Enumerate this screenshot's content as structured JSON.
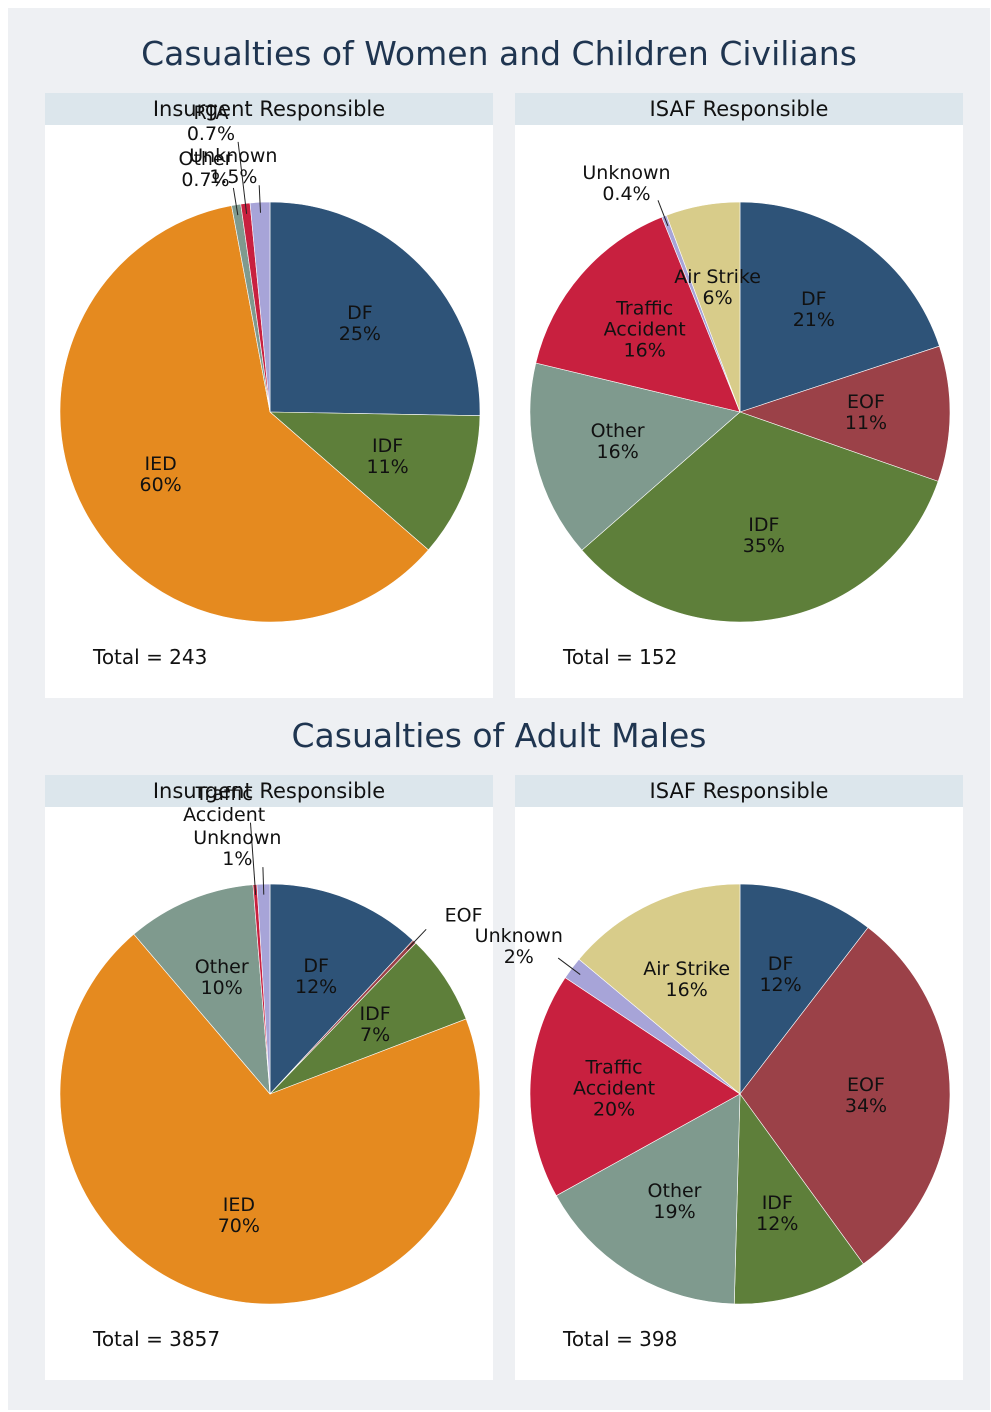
{
  "headings": [
    "Casualties of Women and Children Civilians",
    "Casualties of Adult Males"
  ],
  "chart_data": [
    {
      "type": "pie",
      "title": "Insurgent Responsible",
      "annotation": "Total = 243",
      "categories": [
        "DF",
        "IDF",
        "IED",
        "Other",
        "RTA",
        "Unknown"
      ],
      "values": [
        25,
        11,
        60,
        0.7,
        0.7,
        1.5
      ],
      "value_labels": [
        "25%",
        "11%",
        "60%",
        "0.7%",
        "0.7%",
        "1.5%"
      ],
      "colors": [
        "#2e5378",
        "#5e7f3a",
        "#e58a1f",
        "#7f9a8e",
        "#c8203f",
        "#a7a4d8"
      ]
    },
    {
      "type": "pie",
      "title": "ISAF Responsible",
      "annotation": "Total = 152",
      "categories": [
        "DF",
        "EOF",
        "IDF",
        "Other",
        "Traffic Accident",
        "Unknown",
        "Air Strike"
      ],
      "values": [
        21,
        11,
        35,
        16,
        16,
        0.4,
        6
      ],
      "value_labels": [
        "21%",
        "11%",
        "35%",
        "16%",
        "16%",
        "0.4%",
        "6%"
      ],
      "colors": [
        "#2e5378",
        "#9b4148",
        "#5e7f3a",
        "#7f9a8e",
        "#c8203f",
        "#a7a4d8",
        "#d8cc8a"
      ]
    },
    {
      "type": "pie",
      "title": "Insurgent Responsible",
      "annotation": "Total = 3857",
      "categories": [
        "DF",
        "EOF",
        "IDF",
        "IED",
        "Other",
        "Traffic Accident",
        "Unknown"
      ],
      "values": [
        12,
        0.3,
        7,
        70,
        10,
        0.3,
        1
      ],
      "value_labels": [
        "12%",
        null,
        "7%",
        "70%",
        "10%",
        null,
        "1%"
      ],
      "colors": [
        "#2e5378",
        "#9b4148",
        "#5e7f3a",
        "#e58a1f",
        "#7f9a8e",
        "#c8203f",
        "#a7a4d8"
      ]
    },
    {
      "type": "pie",
      "title": "ISAF Responsible",
      "annotation": "Total = 398",
      "categories": [
        "DF",
        "EOF",
        "IDF",
        "Other",
        "Traffic Accident",
        "Unknown",
        "Air Strike"
      ],
      "values": [
        12,
        34,
        12,
        19,
        20,
        2,
        16
      ],
      "value_labels": [
        "12%",
        "34%",
        "12%",
        "19%",
        "20%",
        "2%",
        "16%"
      ],
      "colors": [
        "#2e5378",
        "#9b4148",
        "#5e7f3a",
        "#7f9a8e",
        "#c8203f",
        "#a7a4d8",
        "#d8cc8a"
      ]
    }
  ]
}
